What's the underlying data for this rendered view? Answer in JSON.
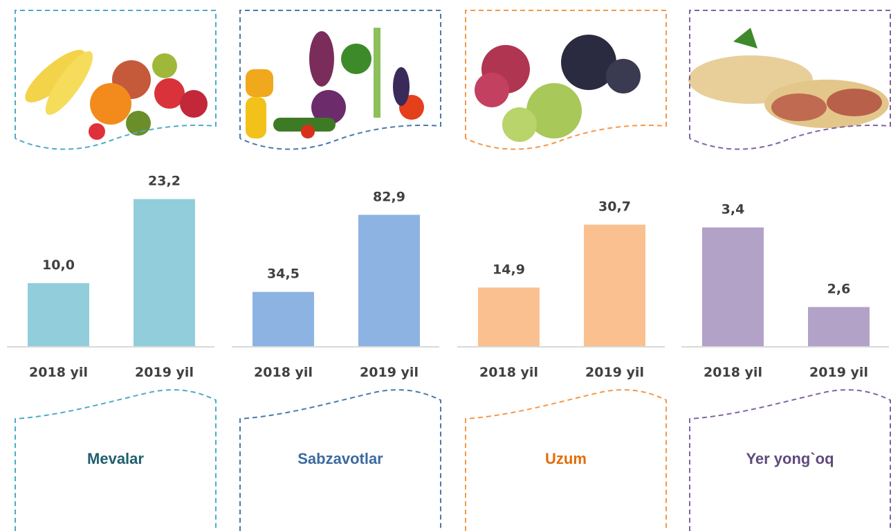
{
  "chart_data": [
    {
      "type": "bar",
      "title": "Mevalar",
      "title_color": "#1f5f6e",
      "frame_color": "#4bacc6",
      "color": "#92cddc",
      "categories": [
        "2018 yil",
        "2019 yil"
      ],
      "values": [
        10.0,
        23.2
      ],
      "value_labels": [
        "10,0",
        "23,2"
      ],
      "ylim": [
        0,
        25
      ]
    },
    {
      "type": "bar",
      "title": "Sabzavotlar",
      "title_color": "#3c6aa0",
      "frame_color": "#4a78ad",
      "color": "#8db3e2",
      "categories": [
        "2018 yil",
        "2019 yil"
      ],
      "values": [
        34.5,
        82.9
      ],
      "value_labels": [
        "34,5",
        "82,9"
      ],
      "ylim": [
        0,
        100
      ]
    },
    {
      "type": "bar",
      "title": "Uzum",
      "title_color": "#e46c0a",
      "frame_color": "#f79646",
      "color": "#fac090",
      "categories": [
        "2018 yil",
        "2019 yil"
      ],
      "values": [
        14.9,
        30.7
      ],
      "value_labels": [
        "14,9",
        "30,7"
      ],
      "ylim": [
        0,
        40
      ]
    },
    {
      "type": "bar",
      "title": "Yer yong`oq",
      "title_color": "#604a7b",
      "frame_color": "#8064a2",
      "color": "#b3a2c7",
      "categories": [
        "2018 yil",
        "2019 yil"
      ],
      "values": [
        3.4,
        2.6
      ],
      "value_labels": [
        "3,4",
        "2,6"
      ],
      "ylim": [
        2.2,
        3.8
      ]
    }
  ]
}
